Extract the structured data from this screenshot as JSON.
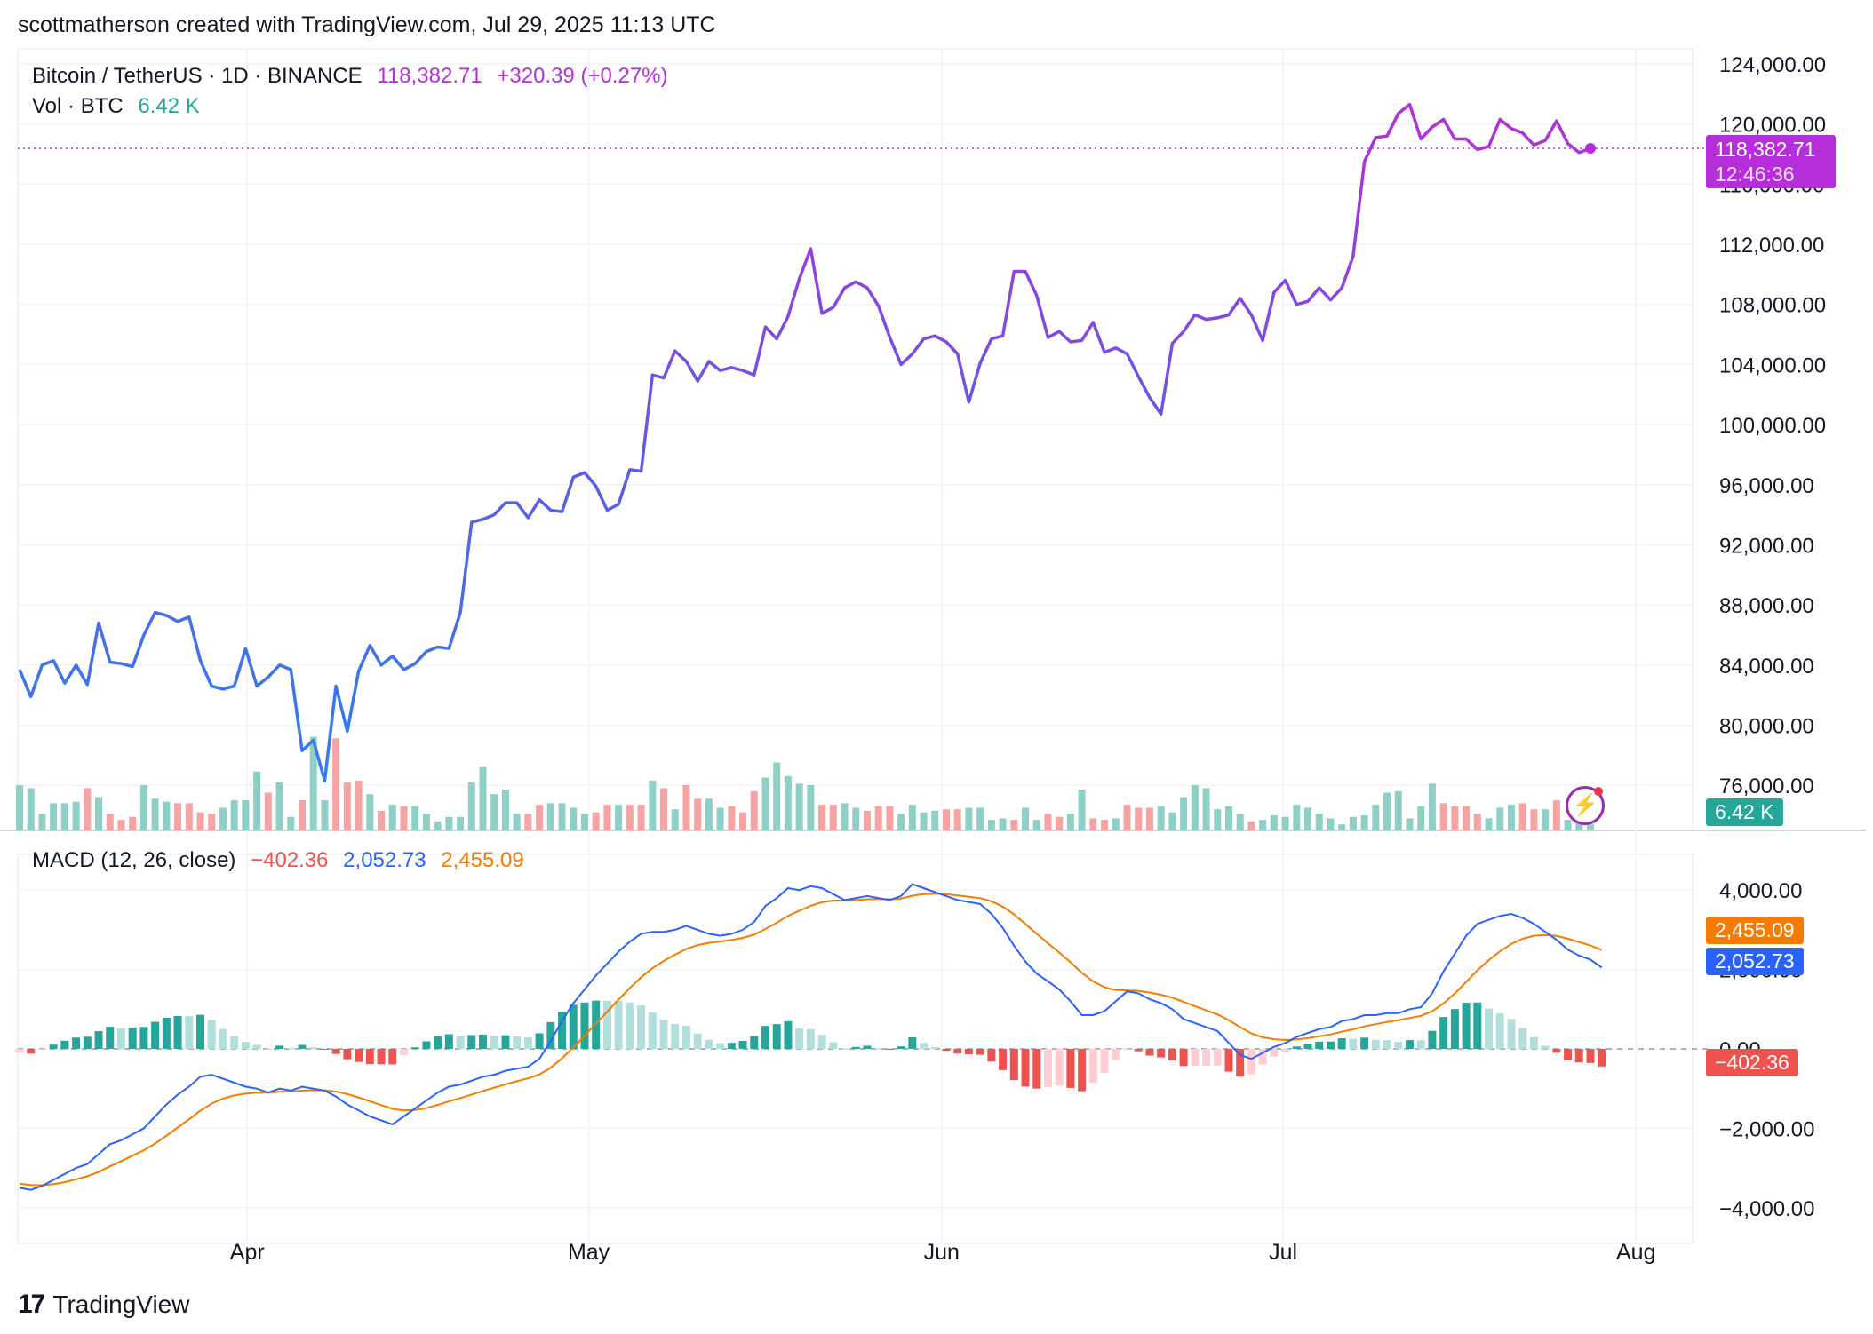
{
  "attribution": "scottmatherson created with TradingView.com, Jul 29, 2025 11:13 UTC",
  "brand": {
    "logo": "17",
    "name": "TradingView"
  },
  "legend": {
    "symbol": "Bitcoin / TetherUS · 1D · BINANCE",
    "last": "118,382.71",
    "change": "+320.39 (+0.27%)",
    "vol_label": "Vol · BTC",
    "vol_value": "6.42 K",
    "macd_label": "MACD (12, 26, close)",
    "macd_hist": "−402.36",
    "macd_line": "2,052.73",
    "macd_signal": "2,455.09"
  },
  "tags": {
    "price": "118,382.71",
    "countdown": "12:46:36",
    "volume": "6.42 K",
    "signal": "2,455.09",
    "macd": "2,052.73",
    "hist": "−402.36"
  },
  "colors": {
    "price_line_start": "#2f80ed",
    "price_line_end": "#b62ed9",
    "vol_up": "#8ed0c5",
    "vol_down": "#f5a3a3",
    "macd_line": "#2962ff",
    "signal_line": "#f57c00",
    "hist_up_strong": "#26a69a",
    "hist_up_weak": "#b2dfdb",
    "hist_down_strong": "#ef5350",
    "hist_down_weak": "#ffcdd2",
    "grid": "#f0f3fa"
  },
  "chart_data": [
    {
      "type": "line",
      "title": "Bitcoin / TetherUS · 1D · BINANCE",
      "x_start": "2025-03-12",
      "x_end": "2025-07-28",
      "x_ticks": [
        {
          "label": "Apr",
          "date": "2025-04-01"
        },
        {
          "label": "May",
          "date": "2025-05-01"
        },
        {
          "label": "Jun",
          "date": "2025-06-01"
        },
        {
          "label": "Jul",
          "date": "2025-07-01"
        },
        {
          "label": "Aug",
          "date": "2025-08-01"
        }
      ],
      "y_ticks": [
        "124,000.00",
        "120,000.00",
        "116,000.00",
        "112,000.00",
        "108,000.00",
        "104,000.00",
        "100,000.00",
        "96,000.00",
        "92,000.00",
        "88,000.00",
        "84,000.00",
        "80,000.00",
        "76,000.00"
      ],
      "ylim": [
        73000,
        125000
      ],
      "last_price": 118382.71,
      "close": [
        83700,
        81900,
        84000,
        84300,
        82800,
        84000,
        82700,
        86800,
        84200,
        84100,
        83900,
        86000,
        87500,
        87300,
        86900,
        87200,
        84300,
        82600,
        82400,
        82600,
        85100,
        82600,
        83200,
        84000,
        83700,
        78300,
        79000,
        76300,
        82600,
        79600,
        83600,
        85300,
        84000,
        84600,
        83700,
        84100,
        84900,
        85200,
        85100,
        87500,
        93500,
        93700,
        94000,
        94800,
        94800,
        93800,
        95000,
        94300,
        94200,
        96500,
        96800,
        95900,
        94300,
        94700,
        97000,
        96900,
        103300,
        103100,
        104900,
        104200,
        102900,
        104200,
        103600,
        103800,
        103600,
        103300,
        106500,
        105700,
        107200,
        109700,
        111700,
        107400,
        107800,
        109100,
        109500,
        109100,
        107900,
        105800,
        104000,
        104700,
        105700,
        105900,
        105500,
        104700,
        101500,
        104100,
        105700,
        105900,
        110200,
        110200,
        108600,
        105800,
        106200,
        105500,
        105600,
        106800,
        104800,
        105100,
        104700,
        103200,
        101800,
        100700,
        105400,
        106200,
        107300,
        107000,
        107100,
        107300,
        108400,
        107300,
        105600,
        108800,
        109600,
        108000,
        108200,
        109100,
        108300,
        109100,
        111200,
        117500,
        119100,
        119200,
        120700,
        121300,
        119000,
        119800,
        120300,
        119000,
        119000,
        118300,
        118500,
        120300,
        119700,
        119400,
        118600,
        118900,
        120200,
        118700,
        118100,
        118383
      ]
    },
    {
      "type": "bar",
      "title": "Vol · BTC",
      "last_value": "6.42 K",
      "up": [
        1,
        1,
        1,
        1,
        1,
        1,
        0,
        1,
        0,
        0,
        0,
        1,
        1,
        1,
        0,
        0,
        0,
        0,
        1,
        1,
        1,
        1,
        0,
        1,
        1,
        0,
        1,
        1,
        0,
        0,
        0,
        1,
        0,
        1,
        0,
        1,
        1,
        1,
        1,
        1,
        1,
        1,
        1,
        1,
        1,
        0,
        0,
        1,
        1,
        1,
        1,
        0,
        0,
        1,
        0,
        0,
        1,
        0,
        1,
        0,
        0,
        1,
        1,
        0,
        0,
        0,
        1,
        1,
        1,
        1,
        1,
        0,
        0,
        1,
        1,
        0,
        0,
        0,
        1,
        1,
        1,
        1,
        0,
        0,
        1,
        1,
        1,
        1,
        0,
        1,
        1,
        0,
        0,
        1,
        1,
        0,
        0,
        1,
        0,
        0,
        0,
        1,
        1,
        1,
        1,
        1,
        1,
        1,
        1,
        0,
        1,
        1,
        1,
        1,
        1,
        1,
        1,
        1,
        1,
        1,
        1,
        1,
        1,
        1,
        1,
        1,
        0,
        0,
        0,
        0,
        1,
        1,
        1,
        0,
        0,
        1,
        0,
        1,
        1,
        1
      ],
      "values": [
        30,
        28,
        11,
        18,
        18,
        19,
        28,
        22,
        11,
        7,
        9,
        30,
        21,
        19,
        18,
        18,
        12,
        11,
        15,
        20,
        20,
        39,
        25,
        32,
        9,
        20,
        62,
        20,
        61,
        32,
        33,
        24,
        13,
        17,
        16,
        16,
        11,
        6,
        9,
        9,
        32,
        42,
        24,
        27,
        11,
        11,
        17,
        18,
        18,
        15,
        11,
        12,
        17,
        17,
        17,
        17,
        33,
        28,
        14,
        30,
        21,
        21,
        15,
        16,
        12,
        26,
        35,
        45,
        36,
        31,
        30,
        17,
        17,
        18,
        15,
        13,
        16,
        16,
        11,
        17,
        12,
        13,
        14,
        14,
        15,
        15,
        7,
        8,
        7,
        15,
        7,
        11,
        9,
        11,
        27,
        8,
        7,
        8,
        17,
        15,
        15,
        16,
        12,
        22,
        30,
        28,
        14,
        16,
        11,
        6,
        7,
        10,
        9,
        17,
        15,
        11,
        8,
        4,
        9,
        10,
        17,
        25,
        26,
        8,
        16,
        31,
        18,
        16,
        16,
        11,
        8,
        15,
        17,
        18,
        14,
        14,
        20,
        7,
        6,
        4
      ],
      "unit": "K BTC"
    },
    {
      "type": "line",
      "title": "MACD (12, 26, close)",
      "y_ticks": [
        "4,000.00",
        "2,000.00",
        "0.00",
        "−2,000.00",
        "−4,000.00"
      ],
      "ylim": [
        -4900,
        4900
      ],
      "macd": [
        -3500,
        -3550,
        -3450,
        -3300,
        -3150,
        -3000,
        -2900,
        -2650,
        -2400,
        -2300,
        -2150,
        -2000,
        -1700,
        -1400,
        -1150,
        -950,
        -700,
        -650,
        -750,
        -850,
        -950,
        -1000,
        -1100,
        -1000,
        -1050,
        -950,
        -1000,
        -1050,
        -1200,
        -1400,
        -1550,
        -1700,
        -1800,
        -1900,
        -1700,
        -1500,
        -1300,
        -1100,
        -950,
        -900,
        -800,
        -700,
        -650,
        -550,
        -500,
        -450,
        -250,
        200,
        700,
        1150,
        1500,
        1850,
        2150,
        2450,
        2700,
        2900,
        2950,
        2950,
        3000,
        3100,
        3000,
        2900,
        2850,
        2900,
        3000,
        3200,
        3600,
        3800,
        4050,
        4000,
        4100,
        4050,
        3900,
        3750,
        3800,
        3850,
        3800,
        3750,
        3850,
        4150,
        4050,
        3950,
        3850,
        3750,
        3700,
        3650,
        3400,
        3050,
        2600,
        2200,
        1900,
        1700,
        1500,
        1200,
        850,
        850,
        950,
        1200,
        1450,
        1400,
        1250,
        1150,
        1000,
        750,
        650,
        550,
        450,
        150,
        -150,
        -250,
        -100,
        50,
        150,
        300,
        400,
        500,
        550,
        700,
        750,
        850,
        850,
        900,
        900,
        1000,
        1050,
        1400,
        1950,
        2400,
        2850,
        3150,
        3250,
        3350,
        3400,
        3300,
        3150,
        2950,
        2750,
        2500,
        2350,
        2250,
        2050
      ]
    }
  ]
}
